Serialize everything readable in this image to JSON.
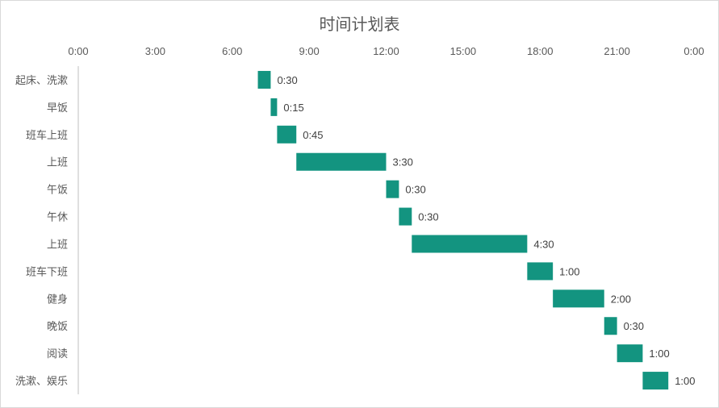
{
  "chart_data": {
    "type": "bar",
    "orientation": "horizontal",
    "stacked_gantt": true,
    "title": "时间计划表",
    "xlabel": "",
    "ylabel": "",
    "xlim": [
      0,
      24
    ],
    "x_tick_labels": [
      "0:00",
      "3:00",
      "6:00",
      "9:00",
      "12:00",
      "15:00",
      "18:00",
      "21:00",
      "0:00"
    ],
    "x_axis_position": "top",
    "grid": false,
    "legend": "none",
    "bar_color": "#139480",
    "categories": [
      "起床、洗漱",
      "早饭",
      "班车上班",
      "上班",
      "午饭",
      "午休",
      "上班",
      "班车下班",
      "健身",
      "晚饭",
      "阅读",
      "洗漱、娱乐"
    ],
    "start_hours": [
      7.0,
      7.5,
      7.75,
      8.5,
      12.0,
      12.5,
      13.0,
      17.5,
      18.5,
      20.5,
      21.0,
      22.0
    ],
    "duration_hours": [
      0.5,
      0.25,
      0.75,
      3.5,
      0.5,
      0.5,
      4.5,
      1.0,
      2.0,
      0.5,
      1.0,
      1.0
    ],
    "data_labels": [
      "0:30",
      "0:15",
      "0:45",
      "3:30",
      "0:30",
      "0:30",
      "4:30",
      "1:00",
      "2:00",
      "0:30",
      "1:00",
      "1:00"
    ]
  }
}
